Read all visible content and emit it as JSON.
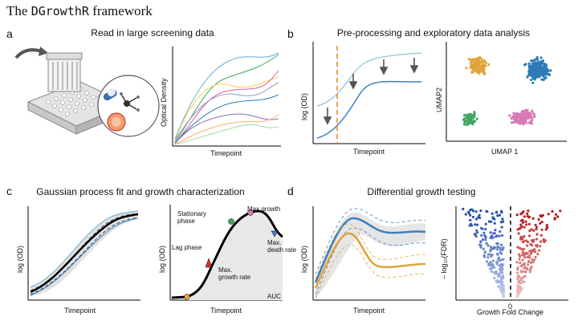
{
  "header": {
    "title_prefix": "The ",
    "title_mono": "DGrowthR",
    "title_suffix": " framework"
  },
  "panels": {
    "a": {
      "label": "a",
      "title": "Read in large screening data",
      "xlabel": "Timepoint",
      "ylabel": "Optical Density"
    },
    "b": {
      "label": "b",
      "title": "Pre-processing and exploratory data analysis",
      "xlabel": "Timepoint",
      "ylabel": "log (OD)",
      "umap_x": "UMAP 1",
      "umap_y": "UMAP2"
    },
    "c": {
      "label": "c",
      "title": "Gaussian process fit and growth characterization",
      "xlabel": "Timepoint",
      "ylabel": "log (OD)",
      "annotations": {
        "stationary": "Stationary\nphase",
        "maxgrowth": "Max.growth",
        "maxdeath": "Max.\ndeath rate",
        "lag": "Lag phase",
        "maxrate": "Max.\ngrowth rate",
        "auc": "AUC"
      }
    },
    "d": {
      "label": "d",
      "title": "Differential growth testing",
      "xlabel": "Timepoint",
      "ylabel": "log (OD)",
      "volcano_x": "Growth Fold Change",
      "volcano_y": "– log₁₀(FDR)",
      "zero": "0"
    }
  },
  "colors": {
    "blue": "#3f7fbf",
    "orange": "#e1a23a",
    "red": "#d2302c",
    "pink": "#d97bb5",
    "green": "#43a563",
    "navy": "#2c7bb6"
  }
}
